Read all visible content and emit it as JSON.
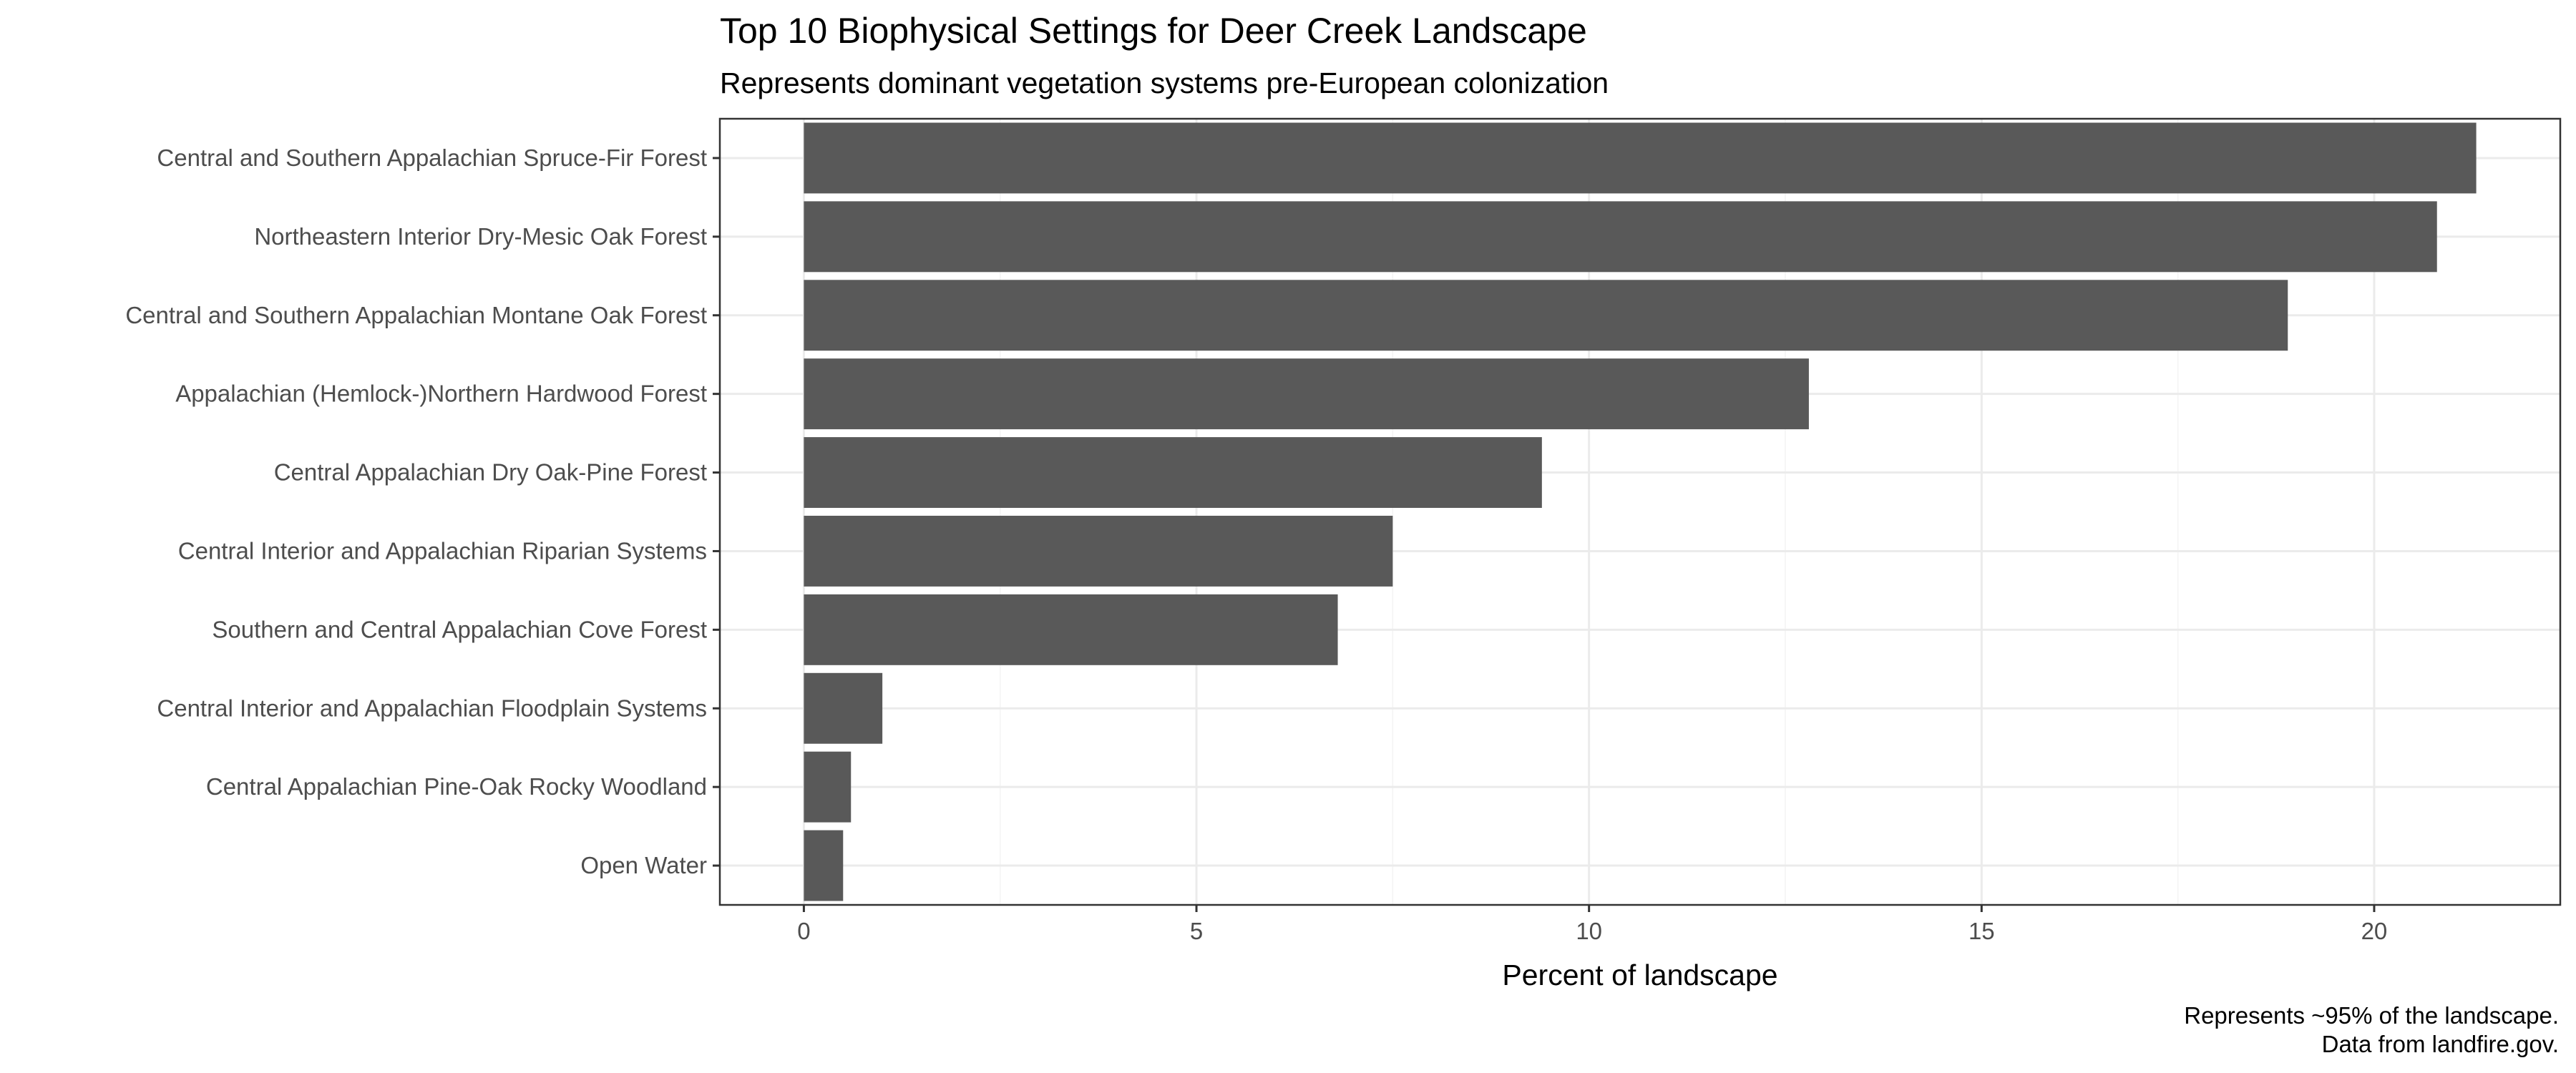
{
  "chart_data": {
    "type": "bar",
    "orientation": "horizontal",
    "title": "Top 10 Biophysical Settings for Deer Creek Landscape",
    "subtitle": "Represents dominant vegetation systems pre-European colonization",
    "xlabel": "Percent of landscape",
    "ylabel": "",
    "caption_lines": [
      "Represents ~95% of the landscape.",
      "Data from landfire.gov."
    ],
    "categories": [
      "Central and Southern Appalachian Spruce-Fir Forest",
      "Northeastern Interior Dry-Mesic Oak Forest",
      "Central and Southern Appalachian Montane Oak Forest",
      "Appalachian (Hemlock-)Northern Hardwood Forest",
      "Central Appalachian Dry Oak-Pine Forest",
      "Central Interior and Appalachian Riparian Systems",
      "Southern and Central Appalachian Cove Forest",
      "Central Interior and Appalachian Floodplain Systems",
      "Central Appalachian Pine-Oak Rocky Woodland",
      "Open Water"
    ],
    "values": [
      21.3,
      20.8,
      18.9,
      12.8,
      9.4,
      7.5,
      6.8,
      1.0,
      0.6,
      0.5
    ],
    "xlim": [
      -1.07,
      22.37
    ],
    "xticks": [
      0,
      5,
      10,
      15,
      20
    ],
    "xticks_labels": [
      "0",
      "5",
      "10",
      "15",
      "20"
    ],
    "grid": true,
    "bar_color": "#595959",
    "theme": "bw"
  }
}
